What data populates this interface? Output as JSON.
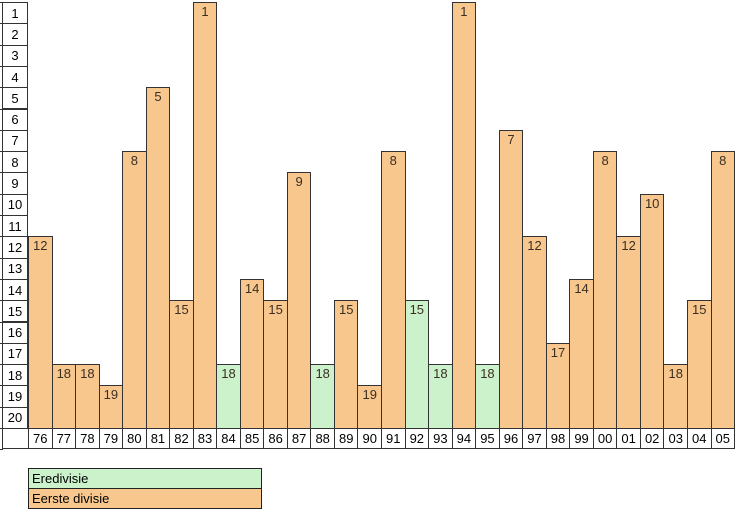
{
  "chart_data": {
    "type": "bar",
    "title": "",
    "y_axis_inverted": true,
    "y_range": [
      1,
      20
    ],
    "y_ticks": [
      "1",
      "2",
      "3",
      "4",
      "5",
      "6",
      "7",
      "8",
      "9",
      "10",
      "11",
      "12",
      "13",
      "14",
      "15",
      "16",
      "17",
      "18",
      "19",
      "20"
    ],
    "x_categories": [
      "76",
      "77",
      "78",
      "79",
      "80",
      "81",
      "82",
      "83",
      "84",
      "85",
      "86",
      "87",
      "88",
      "89",
      "90",
      "91",
      "92",
      "93",
      "94",
      "95",
      "96",
      "97",
      "98",
      "99",
      "00",
      "01",
      "02",
      "03",
      "04",
      "05"
    ],
    "points": [
      {
        "year": "76",
        "position": 12,
        "league": "Eerste divisie"
      },
      {
        "year": "77",
        "position": 18,
        "league": "Eerste divisie"
      },
      {
        "year": "78",
        "position": 18,
        "league": "Eerste divisie"
      },
      {
        "year": "79",
        "position": 19,
        "league": "Eerste divisie"
      },
      {
        "year": "80",
        "position": 8,
        "league": "Eerste divisie"
      },
      {
        "year": "81",
        "position": 5,
        "league": "Eerste divisie"
      },
      {
        "year": "82",
        "position": 15,
        "league": "Eerste divisie"
      },
      {
        "year": "83",
        "position": 1,
        "league": "Eerste divisie"
      },
      {
        "year": "84",
        "position": 18,
        "league": "Eredivisie"
      },
      {
        "year": "85",
        "position": 14,
        "league": "Eerste divisie"
      },
      {
        "year": "86",
        "position": 15,
        "league": "Eerste divisie"
      },
      {
        "year": "87",
        "position": 9,
        "league": "Eerste divisie"
      },
      {
        "year": "88",
        "position": 18,
        "league": "Eredivisie"
      },
      {
        "year": "89",
        "position": 15,
        "league": "Eerste divisie"
      },
      {
        "year": "90",
        "position": 19,
        "league": "Eerste divisie"
      },
      {
        "year": "91",
        "position": 8,
        "league": "Eerste divisie"
      },
      {
        "year": "92",
        "position": 15,
        "league": "Eredivisie"
      },
      {
        "year": "93",
        "position": 18,
        "league": "Eredivisie"
      },
      {
        "year": "94",
        "position": 1,
        "league": "Eerste divisie"
      },
      {
        "year": "95",
        "position": 18,
        "league": "Eredivisie"
      },
      {
        "year": "96",
        "position": 7,
        "league": "Eerste divisie"
      },
      {
        "year": "97",
        "position": 12,
        "league": "Eerste divisie"
      },
      {
        "year": "98",
        "position": 17,
        "league": "Eerste divisie"
      },
      {
        "year": "99",
        "position": 14,
        "league": "Eerste divisie"
      },
      {
        "year": "00",
        "position": 8,
        "league": "Eerste divisie"
      },
      {
        "year": "01",
        "position": 12,
        "league": "Eerste divisie"
      },
      {
        "year": "02",
        "position": 10,
        "league": "Eerste divisie"
      },
      {
        "year": "03",
        "position": 18,
        "league": "Eerste divisie"
      },
      {
        "year": "04",
        "position": 15,
        "league": "Eerste divisie"
      },
      {
        "year": "05",
        "position": 8,
        "league": "Eerste divisie"
      }
    ],
    "legend": [
      {
        "label": "Eredivisie",
        "color": "#ccf2cc"
      },
      {
        "label": "Eerste divisie",
        "color": "#f8c78e"
      }
    ],
    "colors": {
      "eredivisie": "#ccf2cc",
      "eerste_divisie": "#f8c78e",
      "border": "#333333",
      "axis_text": "#000000",
      "bar_label_text": "#3b2f23",
      "background": "#ffffff"
    },
    "legend_position": "bottom-left",
    "grid": false
  }
}
